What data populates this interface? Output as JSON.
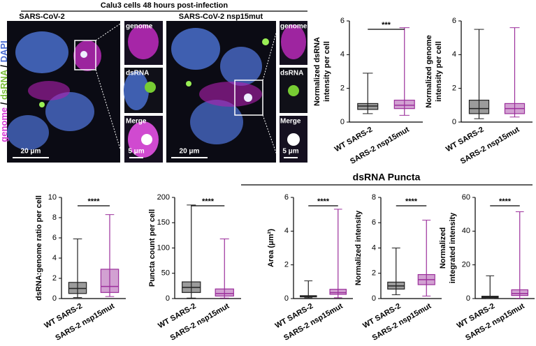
{
  "panel_a": {
    "title": "Calu3 cells 48 hours post-infection",
    "side_label": [
      "genome",
      " / ",
      "dsRNA",
      " / ",
      "DAPI"
    ],
    "left_title": "SARS-CoV-2",
    "right_title": "SARS-CoV-2 nsp15mut",
    "inset_labels": [
      "genome",
      "dsRNA",
      "Merge"
    ],
    "scale_main": "20 μm",
    "scale_inset": "5 μm"
  },
  "group_label": "dsRNA Puncta",
  "chart_data": [
    {
      "type": "box",
      "ylabel": [
        "Normalized dsRNA",
        "intensity per cell"
      ],
      "categories": [
        "WT SARS-2",
        "SARS-2 nsp15mut"
      ],
      "ylim": [
        0,
        6
      ],
      "yticks": [
        0,
        2,
        4,
        6
      ],
      "significance": "***",
      "series": [
        {
          "color": "#222222",
          "min": 0.5,
          "q1": 0.75,
          "median": 0.95,
          "q3": 1.1,
          "max": 2.9
        },
        {
          "color": "#9b2f9b",
          "min": 0.4,
          "q1": 0.8,
          "median": 1.0,
          "q3": 1.3,
          "max": 5.6
        }
      ]
    },
    {
      "type": "box",
      "ylabel": [
        "Normalized genome",
        "intensity per cell"
      ],
      "categories": [
        "WT SARS-2",
        "SARS-2 nsp15mut"
      ],
      "ylim": [
        0,
        6
      ],
      "yticks": [
        0,
        2,
        4,
        6
      ],
      "series": [
        {
          "color": "#222222",
          "min": 0.2,
          "q1": 0.5,
          "median": 0.8,
          "q3": 1.3,
          "max": 5.5
        },
        {
          "color": "#9b2f9b",
          "min": 0.3,
          "q1": 0.5,
          "median": 0.8,
          "q3": 1.1,
          "max": 5.6
        }
      ]
    },
    {
      "type": "box",
      "ylabel": [
        "dsRNA:genome ratio per cell"
      ],
      "categories": [
        "WT SARS-2",
        "SARS-2 nsp15mut"
      ],
      "ylim": [
        0,
        10
      ],
      "yticks": [
        0,
        2,
        4,
        6,
        8,
        10
      ],
      "significance": "****",
      "series": [
        {
          "color": "#222222",
          "min": 0.1,
          "q1": 0.5,
          "median": 1.0,
          "q3": 1.6,
          "max": 5.9
        },
        {
          "color": "#9b2f9b",
          "min": 0.2,
          "q1": 0.6,
          "median": 1.2,
          "q3": 2.9,
          "max": 8.3
        }
      ]
    },
    {
      "type": "box",
      "ylabel": [
        "Puncta count per cell"
      ],
      "categories": [
        "WT SARS-2",
        "SARS-2 nsp15mut"
      ],
      "ylim": [
        0,
        200
      ],
      "yticks": [
        0,
        50,
        100,
        150,
        200
      ],
      "significance": "****",
      "series": [
        {
          "color": "#222222",
          "min": 1,
          "q1": 12,
          "median": 22,
          "q3": 33,
          "max": 185
        },
        {
          "color": "#9b2f9b",
          "min": 1,
          "q1": 5,
          "median": 10,
          "q3": 19,
          "max": 118
        }
      ]
    },
    {
      "type": "box",
      "ylabel": [
        "Area (μm²)"
      ],
      "categories": [
        "WT SARS-2",
        "SARS-2 nsp15mut"
      ],
      "ylim": [
        0,
        6
      ],
      "yticks": [
        0,
        2,
        4,
        6
      ],
      "significance": "****",
      "series": [
        {
          "color": "#222222",
          "min": 0.05,
          "q1": 0.1,
          "median": 0.12,
          "q3": 0.17,
          "max": 1.05
        },
        {
          "color": "#9b2f9b",
          "min": 0.05,
          "q1": 0.25,
          "median": 0.35,
          "q3": 0.55,
          "max": 5.3
        }
      ]
    },
    {
      "type": "box",
      "ylabel": [
        "Normalized intensity"
      ],
      "categories": [
        "WT SARS-2",
        "SARS-2 nsp15mut"
      ],
      "ylim": [
        0,
        8
      ],
      "yticks": [
        0,
        2,
        4,
        6,
        8
      ],
      "significance": "****",
      "series": [
        {
          "color": "#222222",
          "min": 0.3,
          "q1": 0.75,
          "median": 1.0,
          "q3": 1.3,
          "max": 4.0
        },
        {
          "color": "#9b2f9b",
          "min": 0.2,
          "q1": 1.1,
          "median": 1.5,
          "q3": 1.9,
          "max": 6.2
        }
      ]
    },
    {
      "type": "box",
      "ylabel": [
        "Normalized",
        "integrated intensity"
      ],
      "categories": [
        "WT SARS-2",
        "SARS-2 nsp15mut"
      ],
      "ylim": [
        0,
        60
      ],
      "yticks": [
        0,
        20,
        40,
        60
      ],
      "significance": "****",
      "series": [
        {
          "color": "#222222",
          "min": 0.1,
          "q1": 0.5,
          "median": 0.9,
          "q3": 1.4,
          "max": 13.5
        },
        {
          "color": "#9b2f9b",
          "min": 0.2,
          "q1": 1.8,
          "median": 3,
          "q3": 5.2,
          "max": 51.5
        }
      ]
    }
  ]
}
